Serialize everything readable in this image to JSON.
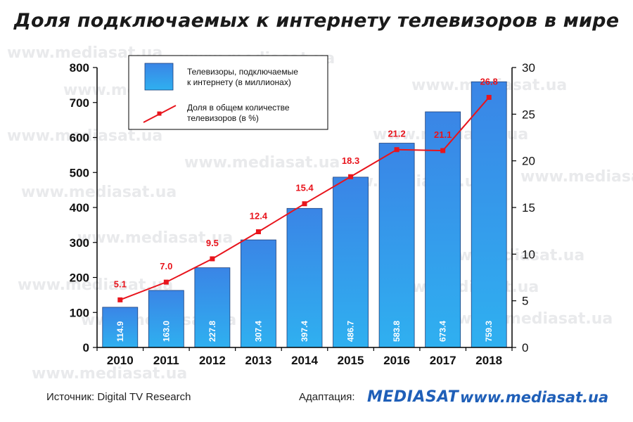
{
  "title": "Доля подключаемых к интернету телевизоров в мире",
  "watermark": "www.mediasat.ua",
  "footer": {
    "source": "Источник: Digital TV Research",
    "adaptation": "Адаптация:",
    "logo": "MEDIASAT",
    "site": "www.mediasat.ua"
  },
  "colors": {
    "bar_top": "#3a85e6",
    "bar_bottom": "#2fb0f0",
    "line": "#e8141c",
    "label_line": "#e8141c",
    "axis": "#000000",
    "brand": "#1f5fb8"
  },
  "chart_data": {
    "type": "bar",
    "title": "Доля подключаемых к интернету телевизоров в мире",
    "categories": [
      "2010",
      "2011",
      "2012",
      "2013",
      "2014",
      "2015",
      "2016",
      "2017",
      "2018"
    ],
    "series": [
      {
        "name": "Телевизоры, подключаемые к интернету (в миллионах)",
        "type": "bar",
        "axis": "left",
        "values": [
          114.9,
          163.0,
          227.8,
          307.4,
          397.4,
          486.7,
          583.8,
          673.4,
          759.3
        ],
        "labels": [
          "114.9",
          "163.0",
          "227.8",
          "307.4",
          "397.4",
          "486.7",
          "583.8",
          "673.4",
          "759.3"
        ]
      },
      {
        "name": "Доля в общем количестве телевизоров (в %)",
        "type": "line",
        "axis": "right",
        "values": [
          5.1,
          7.0,
          9.5,
          12.4,
          15.4,
          18.3,
          21.2,
          21.1,
          26.8
        ],
        "labels": [
          "5.1",
          "7.0",
          "9.5",
          "12.4",
          "15.4",
          "18.3",
          "21.2",
          "21.1",
          "26.8"
        ]
      }
    ],
    "legend": {
      "placement": "top-left",
      "bar_label_line1": "Телевизоры, подключаемые",
      "bar_label_line2": "к интернету (в миллионах)",
      "line_label_line1": "Доля в общем количестве",
      "line_label_line2": "телевизоров (в %)"
    },
    "y_left": {
      "min": 0,
      "max": 800,
      "ticks": [
        "0",
        "100",
        "200",
        "300",
        "400",
        "500",
        "600",
        "700",
        "800"
      ]
    },
    "y_right": {
      "min": 0,
      "max": 30,
      "ticks": [
        "0",
        "5",
        "10",
        "15",
        "20",
        "25",
        "30"
      ]
    },
    "grid": false
  }
}
